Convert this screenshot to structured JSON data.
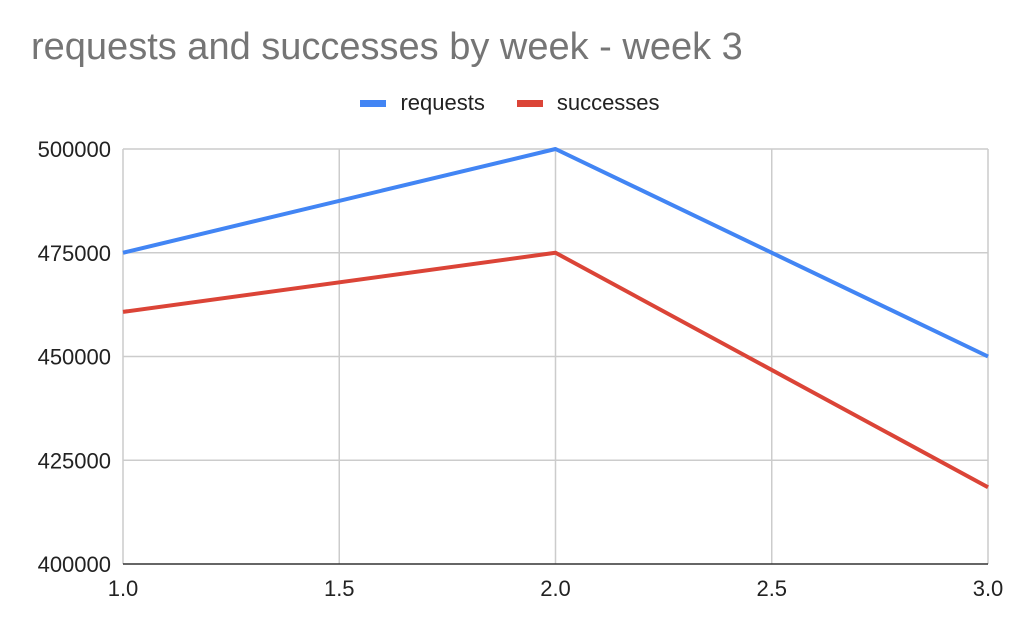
{
  "chart_data": {
    "type": "line",
    "title": "requests and successes by week - week 3",
    "xlabel": "",
    "ylabel": "",
    "x": [
      1.0,
      2.0,
      3.0
    ],
    "series": [
      {
        "name": "requests",
        "color": "#4285f4",
        "values": [
          475000,
          500000,
          450000
        ]
      },
      {
        "name": "successes",
        "color": "#db4437",
        "values": [
          460750,
          475000,
          418500
        ]
      }
    ],
    "xlim": [
      1.0,
      3.0
    ],
    "ylim": [
      400000,
      500000
    ],
    "x_ticks": [
      "1.0",
      "1.5",
      "2.0",
      "2.5",
      "3.0"
    ],
    "x_tick_values": [
      1.0,
      1.5,
      2.0,
      2.5,
      3.0
    ],
    "y_ticks": [
      "500000",
      "475000",
      "450000",
      "425000",
      "400000"
    ],
    "y_tick_values": [
      500000,
      475000,
      450000,
      425000,
      400000
    ],
    "grid": true,
    "legend_position": "top-center"
  }
}
